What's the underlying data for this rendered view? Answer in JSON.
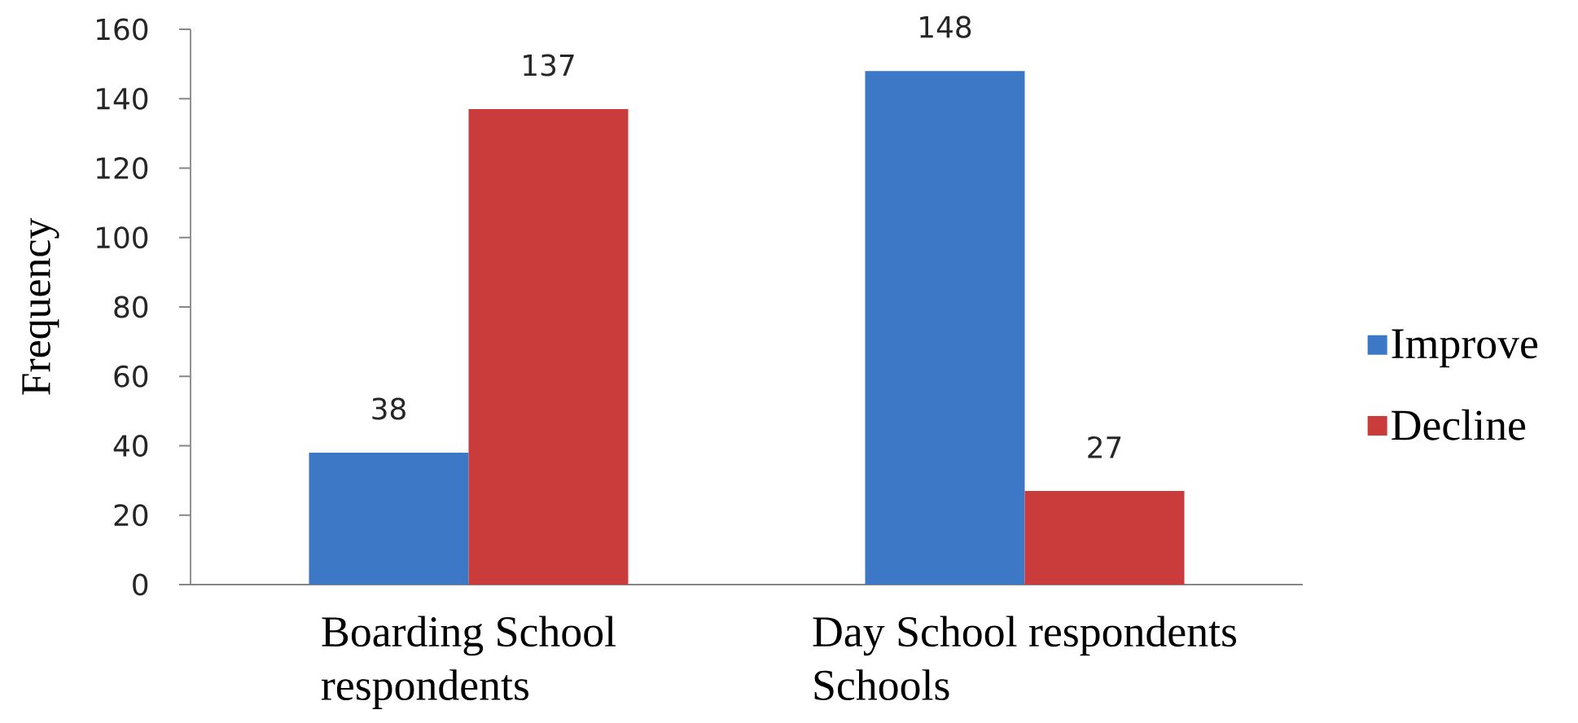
{
  "chart_data": {
    "type": "bar",
    "ylabel": "Frequency",
    "categories": [
      "Boarding School respondents",
      "Day School respondents Schools"
    ],
    "series": [
      {
        "name": "Improve",
        "color": "#3d78c6",
        "values": [
          38,
          148
        ]
      },
      {
        "name": "Decline",
        "color": "#c93c3b",
        "values": [
          137,
          27
        ]
      }
    ],
    "ylim": [
      0,
      160
    ],
    "yticks": [
      0,
      20,
      40,
      60,
      80,
      100,
      120,
      140,
      160
    ],
    "data_labels": true,
    "legend": "right"
  }
}
